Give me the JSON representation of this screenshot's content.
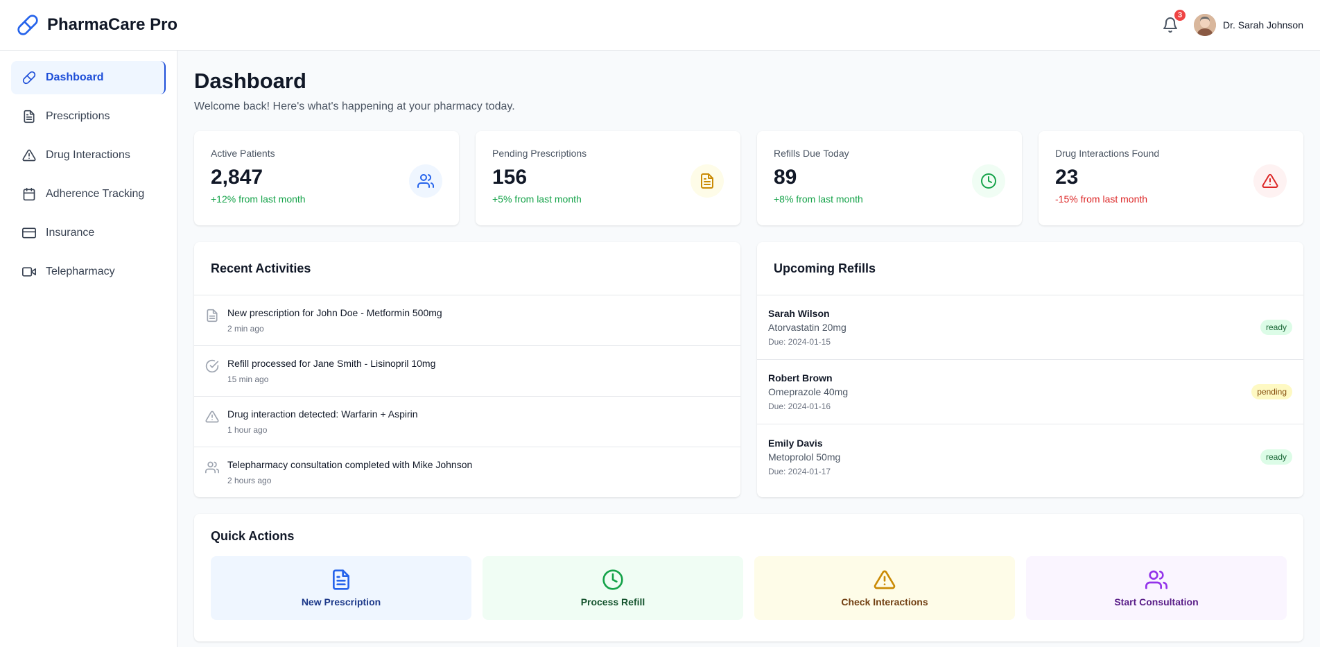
{
  "header": {
    "title": "PharmaCare Pro",
    "notifications_count": "3",
    "user_name": "Dr. Sarah Johnson"
  },
  "sidebar": {
    "items": [
      {
        "label": "Dashboard",
        "icon": "pill-icon",
        "active": true
      },
      {
        "label": "Prescriptions",
        "icon": "file-text-icon"
      },
      {
        "label": "Drug Interactions",
        "icon": "alert-triangle-icon"
      },
      {
        "label": "Adherence Tracking",
        "icon": "calendar-icon"
      },
      {
        "label": "Insurance",
        "icon": "credit-card-icon"
      },
      {
        "label": "Telepharmacy",
        "icon": "video-icon"
      }
    ]
  },
  "page": {
    "title": "Dashboard",
    "subtitle": "Welcome back! Here's what's happening at your pharmacy today."
  },
  "stats": [
    {
      "label": "Active Patients",
      "value": "2,847",
      "change": "+12% from last month",
      "trend": "up",
      "icon": "users-icon",
      "color": "#2563eb",
      "bg": "#eff6ff"
    },
    {
      "label": "Pending Prescriptions",
      "value": "156",
      "change": "+5% from last month",
      "trend": "up",
      "icon": "file-text-icon",
      "color": "#ca8a04",
      "bg": "#fefce8"
    },
    {
      "label": "Refills Due Today",
      "value": "89",
      "change": "+8% from last month",
      "trend": "up",
      "icon": "clock-icon",
      "color": "#16a34a",
      "bg": "#f0fdf4"
    },
    {
      "label": "Drug Interactions Found",
      "value": "23",
      "change": "-15% from last month",
      "trend": "down",
      "icon": "alert-triangle-icon",
      "color": "#dc2626",
      "bg": "#fef2f2"
    }
  ],
  "recent_activities": {
    "title": "Recent Activities",
    "items": [
      {
        "text": "New prescription for John Doe - Metformin 500mg",
        "time": "2 min ago",
        "icon": "file-text-icon"
      },
      {
        "text": "Refill processed for Jane Smith - Lisinopril 10mg",
        "time": "15 min ago",
        "icon": "check-circle-icon"
      },
      {
        "text": "Drug interaction detected: Warfarin + Aspirin",
        "time": "1 hour ago",
        "icon": "alert-triangle-icon"
      },
      {
        "text": "Telepharmacy consultation completed with Mike Johnson",
        "time": "2 hours ago",
        "icon": "users-icon"
      }
    ]
  },
  "upcoming_refills": {
    "title": "Upcoming Refills",
    "items": [
      {
        "name": "Sarah Wilson",
        "medication": "Atorvastatin 20mg",
        "due": "Due: 2024-01-15",
        "status": "ready"
      },
      {
        "name": "Robert Brown",
        "medication": "Omeprazole 40mg",
        "due": "Due: 2024-01-16",
        "status": "pending"
      },
      {
        "name": "Emily Davis",
        "medication": "Metoprolol 50mg",
        "due": "Due: 2024-01-17",
        "status": "ready"
      }
    ]
  },
  "quick_actions": {
    "title": "Quick Actions",
    "items": [
      {
        "label": "New Prescription",
        "icon": "file-text-icon",
        "color": "#2563eb",
        "text_color": "#1e3a8a",
        "bg": "#eff6ff"
      },
      {
        "label": "Process Refill",
        "icon": "clock-icon",
        "color": "#16a34a",
        "text_color": "#14532d",
        "bg": "#f0fdf4"
      },
      {
        "label": "Check Interactions",
        "icon": "alert-triangle-icon",
        "color": "#ca8a04",
        "text_color": "#713f12",
        "bg": "#fefce8"
      },
      {
        "label": "Start Consultation",
        "icon": "users-icon",
        "color": "#9333ea",
        "text_color": "#581c87",
        "bg": "#faf5ff"
      }
    ]
  }
}
